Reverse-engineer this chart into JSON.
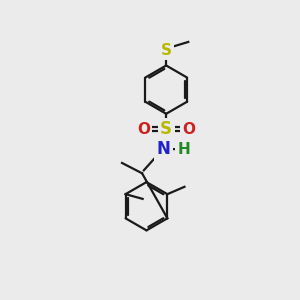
{
  "bg_color": "#ebebeb",
  "line_color": "#1a1a1a",
  "S_color": "#b8b800",
  "N_color": "#2222cc",
  "O_color": "#cc2222",
  "H_color": "#228822",
  "lw": 1.6,
  "fig_width": 3.0,
  "fig_height": 3.0,
  "dpi": 100,
  "xlim": [
    0,
    10
  ],
  "ylim": [
    0,
    10
  ]
}
